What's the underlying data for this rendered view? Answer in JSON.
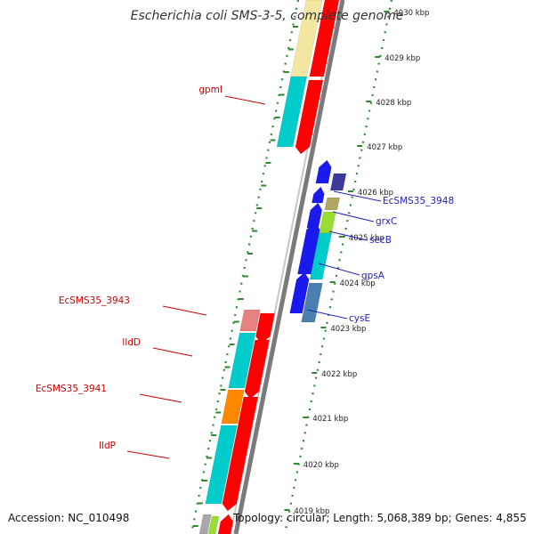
{
  "title": "Escherichia coli SMS-3-5, complete genome",
  "footer": {
    "accession": "Accession: NC_010498",
    "summary": "Topology: circular; Length: 5,068,389 bp; Genes: 4,855"
  },
  "colors": {
    "backbone": "#7a7a7a",
    "ruler_dots": "#2d8a2d",
    "reverse_label": "#cc0000",
    "forward_label": "#1f1fc0"
  },
  "ticks": [
    "4030 kbp",
    "4029 kbp",
    "4028 kbp",
    "4027 kbp",
    "4026 kbp",
    "4025 kbp",
    "4024 kbp",
    "4023 kbp",
    "4022 kbp",
    "4021 kbp",
    "4020 kbp",
    "4019 kbp"
  ],
  "reverse_strand_genes": [
    {
      "label": "gpmI",
      "color": "#00cccc"
    },
    {
      "label": "EcSMS35_3943",
      "color": "#e88080"
    },
    {
      "label": "lldD",
      "color": "#00cccc"
    },
    {
      "label": "EcSMS35_3941",
      "color": "#ff8800"
    },
    {
      "label": "lldP",
      "color": "#00cccc"
    }
  ],
  "forward_strand_genes": [
    {
      "label": "EcSMS35_3948",
      "color": "#3a3a9a"
    },
    {
      "label": "grxC",
      "color": "#b0a860"
    },
    {
      "label": "secB",
      "color": "#99dd33"
    },
    {
      "label": "gpsA",
      "color": "#00cccc"
    },
    {
      "label": "cysE",
      "color": "#4a7fb0"
    }
  ]
}
